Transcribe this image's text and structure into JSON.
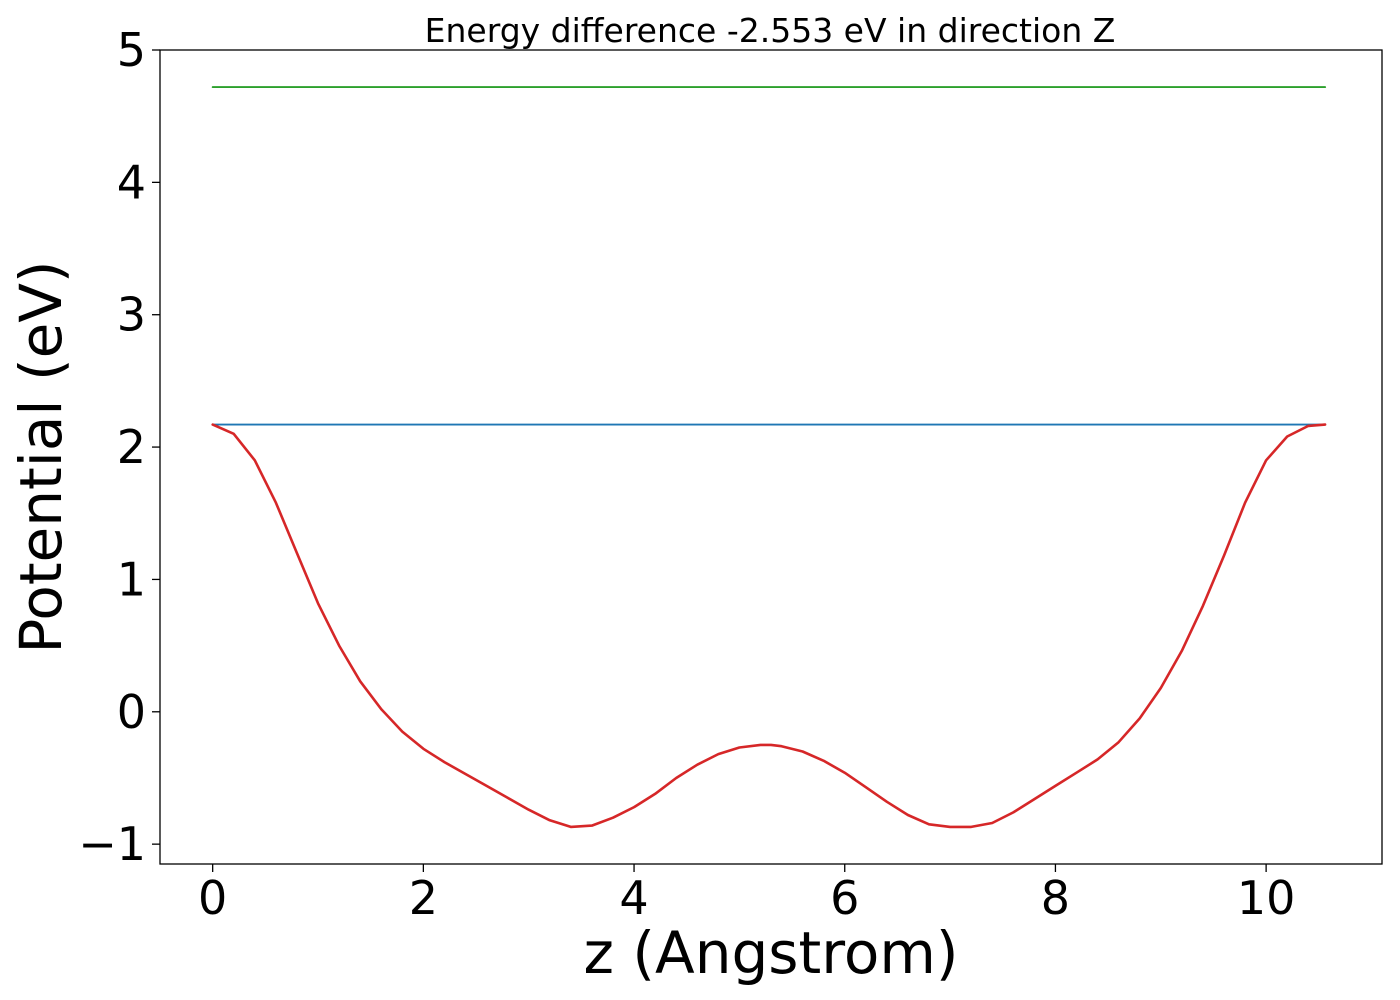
{
  "chart_data": {
    "type": "line",
    "title": "Energy difference -2.553 eV in direction Z",
    "xlabel": "z (Angstrom)",
    "ylabel": "Potential (eV)",
    "xlim": [
      -0.5,
      11.1
    ],
    "ylim": [
      -1.15,
      5.0
    ],
    "xticks": [
      0,
      2,
      4,
      6,
      8,
      10
    ],
    "xtick_labels": [
      "0",
      "2",
      "4",
      "6",
      "8",
      "10"
    ],
    "yticks": [
      -1,
      0,
      1,
      2,
      3,
      4,
      5
    ],
    "ytick_labels": [
      "−1",
      "0",
      "1",
      "2",
      "3",
      "4",
      "5"
    ],
    "grid": false,
    "series": [
      {
        "color": "#2ca02c",
        "x": [
          0,
          10.56
        ],
        "y": [
          4.72,
          4.72
        ]
      },
      {
        "color": "#1f77b4",
        "x": [
          0,
          10.56
        ],
        "y": [
          2.17,
          2.17
        ]
      },
      {
        "color": "#d62728",
        "x": [
          0,
          0.2,
          0.4,
          0.6,
          0.8,
          1.0,
          1.2,
          1.4,
          1.6,
          1.8,
          2.0,
          2.2,
          2.4,
          2.6,
          2.8,
          3.0,
          3.2,
          3.4,
          3.6,
          3.8,
          4.0,
          4.2,
          4.4,
          4.6,
          4.8,
          5.0,
          5.2,
          5.3,
          5.4,
          5.6,
          5.8,
          6.0,
          6.2,
          6.4,
          6.6,
          6.8,
          7.0,
          7.2,
          7.4,
          7.6,
          7.8,
          8.0,
          8.2,
          8.4,
          8.6,
          8.8,
          9.0,
          9.2,
          9.4,
          9.6,
          9.8,
          10.0,
          10.2,
          10.4,
          10.56
        ],
        "y": [
          2.17,
          2.1,
          1.9,
          1.58,
          1.2,
          0.82,
          0.5,
          0.23,
          0.02,
          -0.15,
          -0.28,
          -0.38,
          -0.47,
          -0.56,
          -0.65,
          -0.74,
          -0.82,
          -0.87,
          -0.86,
          -0.8,
          -0.72,
          -0.62,
          -0.5,
          -0.4,
          -0.32,
          -0.27,
          -0.25,
          -0.25,
          -0.26,
          -0.3,
          -0.37,
          -0.46,
          -0.57,
          -0.68,
          -0.78,
          -0.85,
          -0.87,
          -0.87,
          -0.84,
          -0.76,
          -0.66,
          -0.56,
          -0.46,
          -0.36,
          -0.23,
          -0.05,
          0.18,
          0.46,
          0.8,
          1.18,
          1.58,
          1.9,
          2.08,
          2.16,
          2.17
        ]
      }
    ]
  }
}
